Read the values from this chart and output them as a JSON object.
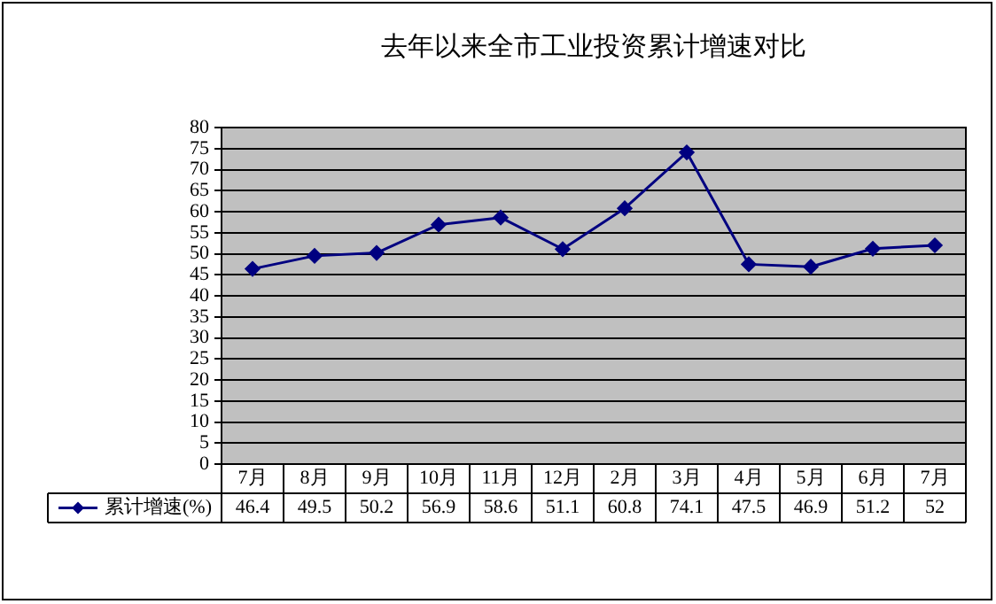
{
  "chart_data": {
    "type": "line",
    "title": "去年以来全市工业投资累计增速对比",
    "categories": [
      "7月",
      "8月",
      "9月",
      "10月",
      "11月",
      "12月",
      "2月",
      "3月",
      "4月",
      "5月",
      "6月",
      "7月"
    ],
    "series": [
      {
        "name": "累计增速(%)",
        "color": "#000080",
        "values": [
          46.4,
          49.5,
          50.2,
          56.9,
          58.6,
          51.1,
          60.8,
          74.1,
          47.5,
          46.9,
          51.2,
          52
        ]
      }
    ],
    "ylim": [
      0,
      80
    ],
    "yticks": [
      0,
      5,
      10,
      15,
      20,
      25,
      30,
      35,
      40,
      45,
      50,
      55,
      60,
      65,
      70,
      75,
      80
    ],
    "grid": "y",
    "legend": "bottom left",
    "marker": "diamond",
    "line_style": "solid",
    "data_labels": true
  }
}
